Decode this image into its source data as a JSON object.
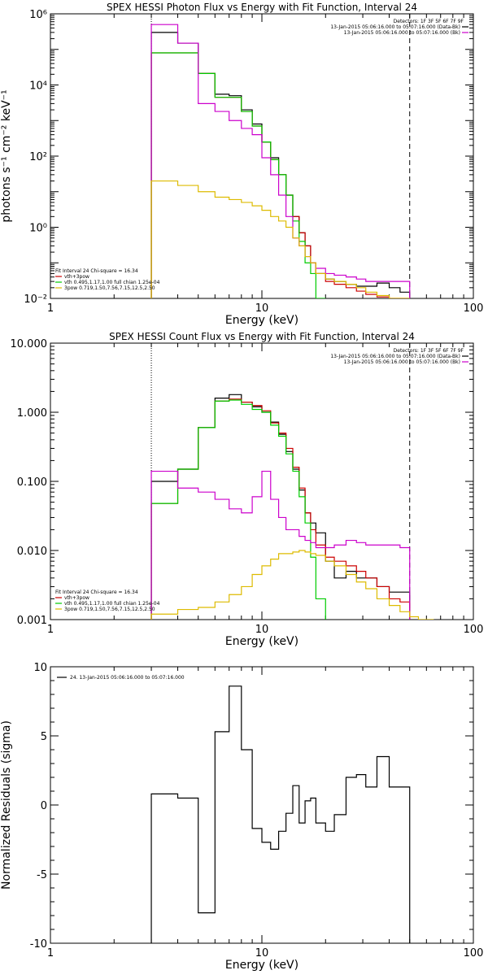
{
  "chart_data": [
    {
      "type": "line",
      "title": "SPEX HESSI Photon Flux vs Energy with Fit Function, Interval 24",
      "xlabel": "Energy (keV)",
      "ylabel": "photons s⁻¹ cm⁻² keV⁻¹",
      "xscale": "log",
      "yscale": "log",
      "xlim": [
        1,
        100
      ],
      "ylim": [
        0.01,
        1000000
      ],
      "x_ticks": [
        {
          "v": 1,
          "label": "1"
        },
        {
          "v": 10,
          "label": "10"
        },
        {
          "v": 100,
          "label": "100"
        }
      ],
      "y_ticks": [
        {
          "v": 0.01,
          "label": "10⁻²"
        },
        {
          "v": 1,
          "label": "10⁰"
        },
        {
          "v": 100,
          "label": "10²"
        },
        {
          "v": 10000,
          "label": "10⁴"
        },
        {
          "v": 1000000,
          "label": "10⁶"
        }
      ],
      "vlines": [
        {
          "x": 3,
          "style": "dotted"
        },
        {
          "x": 50,
          "style": "dashed"
        }
      ],
      "legend_fit": {
        "header": "Fit Interval 24   Chi-square = 16.34",
        "items": [
          {
            "text": "vth+3pow",
            "color": "#cc0000"
          },
          {
            "text": "vth 0.495,1.17,1.00  full chian 1.25e-04",
            "color": "#00cc00"
          },
          {
            "text": "3pow 0.719,1.50,7.56,7.15,12.5,2.50",
            "color": "#ddbb00"
          }
        ]
      },
      "legend_data": {
        "header": "Detectors: 1F 3F 5F 6F 7F 9F",
        "items": [
          {
            "text": "13-Jan-2015 05:06:16.000 to 05:07:16.000 (Data-Bk)",
            "color": "#000000"
          },
          {
            "text": "13-Jan-2015 05:06:16.000 to 05:07:16.000 (Bk)",
            "color": "#cc00cc"
          }
        ]
      },
      "bin_edges": [
        3,
        4,
        5,
        6,
        7,
        8,
        9,
        10,
        11,
        12,
        13,
        14,
        15,
        16,
        17,
        18,
        20,
        22,
        25,
        28,
        31,
        35,
        40,
        45,
        50
      ],
      "series": [
        {
          "name": "Data-Bk",
          "color": "#000000",
          "values": [
            300000,
            150000,
            21000,
            5500,
            5000,
            2000,
            800,
            250,
            90,
            30,
            8,
            2,
            0.7,
            0.3,
            0.1,
            0.05,
            0.035,
            0.03,
            0.025,
            0.022,
            0.022,
            0.027,
            0.02,
            0.015
          ]
        },
        {
          "name": "vth+3pow",
          "color": "#cc0000",
          "values": [
            80000,
            80000,
            21000,
            4500,
            4500,
            1800,
            700,
            250,
            80,
            30,
            8,
            2,
            0.7,
            0.3,
            0.1,
            0.05,
            0.03,
            0.025,
            0.02,
            0.016,
            0.013,
            0.011,
            0.01,
            0.009
          ]
        },
        {
          "name": "vth",
          "color": "#00cc00",
          "values": [
            80000,
            80000,
            21000,
            4500,
            4500,
            1800,
            700,
            250,
            80,
            30,
            8,
            1.5,
            0.4,
            0.1,
            0.05,
            0.008
          ]
        },
        {
          "name": "Bk",
          "color": "#cc00cc",
          "values": [
            500000,
            150000,
            3000,
            1800,
            1000,
            600,
            400,
            90,
            30,
            8,
            2,
            0.5,
            0.3,
            0.15,
            0.1,
            0.07,
            0.05,
            0.045,
            0.04,
            0.035,
            0.03,
            0.03,
            0.03,
            0.03
          ]
        },
        {
          "name": "3pow",
          "color": "#ddbb00",
          "values": [
            20,
            15,
            10,
            7,
            6,
            5,
            4,
            3,
            2,
            1.5,
            1,
            0.5,
            0.3,
            0.15,
            0.1,
            0.05,
            0.035,
            0.03,
            0.025,
            0.02,
            0.015,
            0.012,
            0.01,
            0.009
          ]
        }
      ]
    },
    {
      "type": "line",
      "title": "SPEX HESSI Count Flux vs Energy with Fit Function, Interval 24",
      "xlabel": "Energy (keV)",
      "ylabel": "",
      "xscale": "log",
      "yscale": "log",
      "xlim": [
        1,
        100
      ],
      "ylim": [
        0.001,
        10
      ],
      "x_ticks": [
        {
          "v": 1,
          "label": "1"
        },
        {
          "v": 10,
          "label": "10"
        },
        {
          "v": 100,
          "label": "100"
        }
      ],
      "y_ticks": [
        {
          "v": 0.001,
          "label": "0.001"
        },
        {
          "v": 0.01,
          "label": "0.010"
        },
        {
          "v": 0.1,
          "label": "0.100"
        },
        {
          "v": 1,
          "label": "1.000"
        },
        {
          "v": 10,
          "label": "10.000"
        }
      ],
      "vlines": [
        {
          "x": 3,
          "style": "dotted"
        },
        {
          "x": 50,
          "style": "dashed"
        }
      ],
      "legend_fit": {
        "header": "Fit Interval 24   Chi-square = 16.34",
        "items": [
          {
            "text": "vth+3pow",
            "color": "#cc0000"
          },
          {
            "text": "vth 0.495,1.17,1.00  full chian 1.25e-04",
            "color": "#00cc00"
          },
          {
            "text": "3pow 0.719,1.50,7.56,7.15,12.5,2.50",
            "color": "#ddbb00"
          }
        ]
      },
      "legend_data": {
        "header": "Detectors: 1F 3F 5F 6F 7F 9F",
        "items": [
          {
            "text": "13-Jan-2015 05:06:16.000 to 05:07:16.000 (Data-Bk)",
            "color": "#000000"
          },
          {
            "text": "13-Jan-2015 05:06:16.000 to 05:07:16.000 (Bk)",
            "color": "#cc00cc"
          }
        ]
      },
      "bin_edges": [
        3,
        4,
        5,
        6,
        7,
        8,
        9,
        10,
        11,
        12,
        13,
        14,
        15,
        16,
        17,
        18,
        20,
        22,
        25,
        28,
        31,
        35,
        40,
        45,
        50,
        55,
        60,
        65
      ],
      "series": [
        {
          "name": "Data-Bk",
          "color": "#000000",
          "values": [
            0.1,
            0.15,
            0.6,
            1.6,
            1.8,
            1.4,
            1.2,
            1.0,
            0.72,
            0.48,
            0.27,
            0.15,
            0.075,
            0.035,
            0.025,
            0.018,
            0.007,
            0.004,
            0.005,
            0.004,
            0.004,
            0.003,
            0.0025,
            0.0025
          ]
        },
        {
          "name": "vth+3pow",
          "color": "#cc0000",
          "values": [
            0.048,
            0.15,
            0.6,
            1.45,
            1.55,
            1.4,
            1.25,
            1.05,
            0.7,
            0.5,
            0.3,
            0.16,
            0.08,
            0.035,
            0.02,
            0.012,
            0.008,
            0.007,
            0.006,
            0.005,
            0.004,
            0.003,
            0.002,
            0.0018
          ]
        },
        {
          "name": "vth",
          "color": "#00cc00",
          "values": [
            0.048,
            0.15,
            0.6,
            1.45,
            1.5,
            1.3,
            1.1,
            1.0,
            0.65,
            0.45,
            0.25,
            0.14,
            0.06,
            0.025,
            0.008,
            0.002
          ]
        },
        {
          "name": "Bk",
          "color": "#cc00cc",
          "values": [
            0.14,
            0.08,
            0.07,
            0.055,
            0.04,
            0.035,
            0.06,
            0.14,
            0.055,
            0.03,
            0.02,
            0.02,
            0.016,
            0.014,
            0.013,
            0.011,
            0.011,
            0.012,
            0.014,
            0.013,
            0.012,
            0.012,
            0.012,
            0.011
          ]
        },
        {
          "name": "3pow",
          "color": "#ddbb00",
          "values": [
            0.0012,
            0.0014,
            0.0015,
            0.0018,
            0.0023,
            0.003,
            0.0045,
            0.006,
            0.0075,
            0.009,
            0.009,
            0.0095,
            0.01,
            0.0095,
            0.009,
            0.0085,
            0.007,
            0.006,
            0.0045,
            0.0035,
            0.0028,
            0.002,
            0.0016,
            0.0013,
            0.0011,
            0.001,
            0.0008
          ]
        }
      ]
    },
    {
      "type": "line",
      "title": "",
      "xlabel": "Energy (keV)",
      "ylabel": "Normalized Residuals (sigma)",
      "xscale": "log",
      "yscale": "linear",
      "xlim": [
        1,
        100
      ],
      "ylim": [
        -10,
        10
      ],
      "x_ticks": [
        {
          "v": 1,
          "label": "1"
        },
        {
          "v": 10,
          "label": "10"
        },
        {
          "v": 100,
          "label": "100"
        }
      ],
      "y_ticks": [
        {
          "v": -10,
          "label": "-10"
        },
        {
          "v": -5,
          "label": "-5"
        },
        {
          "v": 0,
          "label": "0"
        },
        {
          "v": 5,
          "label": "5"
        },
        {
          "v": 10,
          "label": "10"
        }
      ],
      "legend_data": {
        "header": "",
        "items": [
          {
            "text": "24. 13-Jan-2015 05:06:16.000 to 05:07:16.000",
            "color": "#000000"
          }
        ]
      },
      "bin_edges": [
        3,
        4,
        5,
        6,
        7,
        8,
        9,
        10,
        11,
        12,
        13,
        14,
        15,
        16,
        17,
        18,
        20,
        22,
        25,
        28,
        31,
        35,
        40,
        45,
        50
      ],
      "series": [
        {
          "name": "",
          "color": "#000000",
          "values": [
            0.8,
            0.5,
            -7.8,
            5.3,
            8.6,
            4.0,
            -1.7,
            -2.7,
            -3.2,
            -1.9,
            -0.6,
            1.4,
            -1.3,
            0.3,
            0.5,
            -1.3,
            -1.9,
            -0.7,
            2.0,
            2.2,
            1.3,
            3.5,
            1.3,
            1.3
          ]
        }
      ]
    }
  ]
}
